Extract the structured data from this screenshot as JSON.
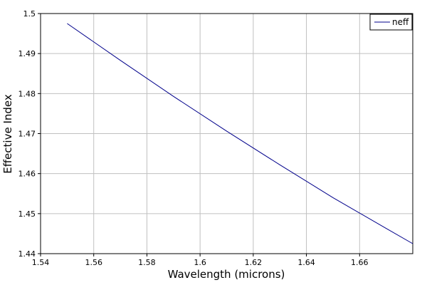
{
  "chart_data": {
    "type": "line",
    "xlabel": "Wavelength (microns)",
    "ylabel": "Effective Index",
    "xlim": [
      1.54,
      1.68
    ],
    "ylim": [
      1.44,
      1.5
    ],
    "xticks": [
      "1.54",
      "1.56",
      "1.58",
      "1.6",
      "1.62",
      "1.64",
      "1.66"
    ],
    "xtick_values": [
      1.54,
      1.56,
      1.58,
      1.6,
      1.62,
      1.64,
      1.66
    ],
    "yticks": [
      "1.44",
      "1.45",
      "1.46",
      "1.47",
      "1.48",
      "1.49",
      "1.5"
    ],
    "ytick_values": [
      1.44,
      1.45,
      1.46,
      1.47,
      1.48,
      1.49,
      1.5
    ],
    "grid": true,
    "legend_position": "top-right",
    "series": [
      {
        "name": "neff",
        "color": "#00008b",
        "x": [
          1.55,
          1.57,
          1.59,
          1.61,
          1.63,
          1.65,
          1.67,
          1.68
        ],
        "y": [
          1.4975,
          1.4883,
          1.4793,
          1.4706,
          1.4622,
          1.454,
          1.4463,
          1.4425
        ]
      }
    ]
  }
}
